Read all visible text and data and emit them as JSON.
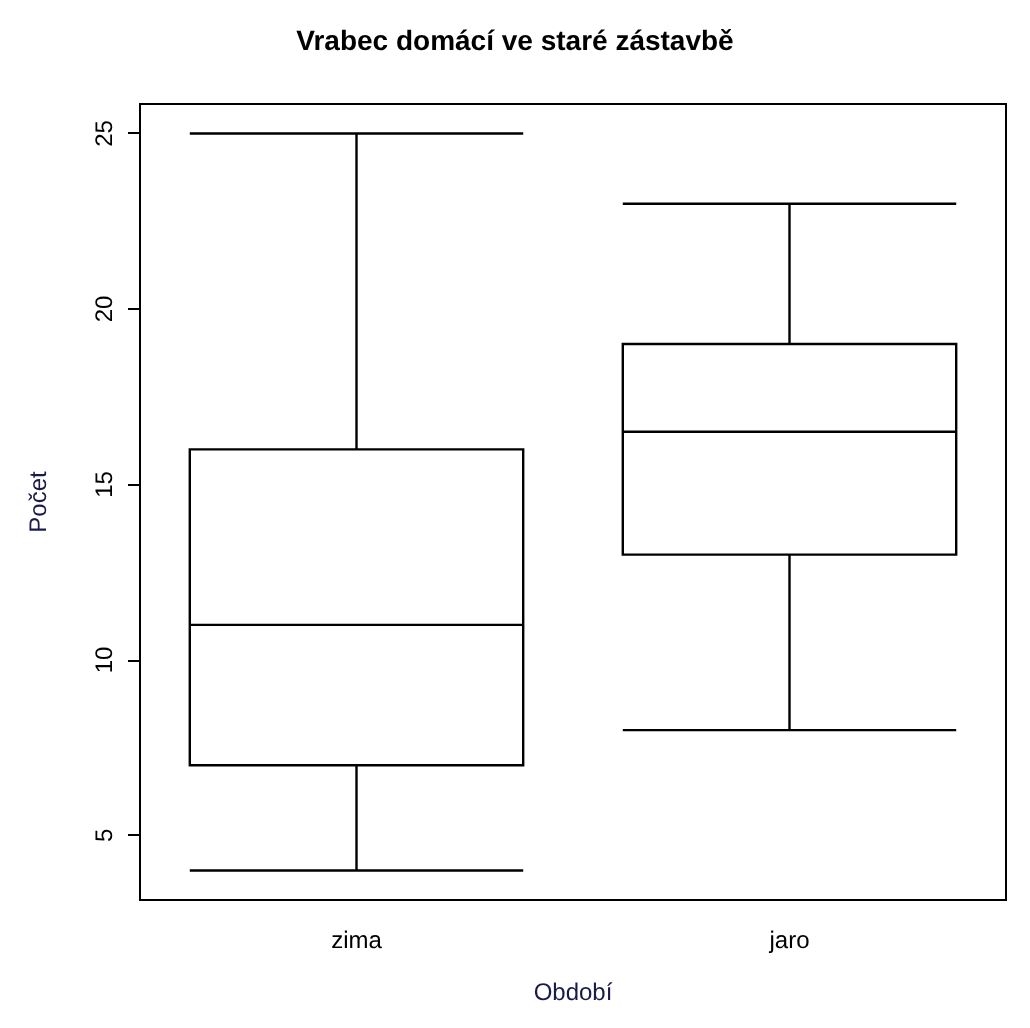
{
  "chart_data": {
    "type": "box",
    "title": "Vrabec domácí ve staré zástavbě",
    "xlabel": "Období",
    "ylabel": "Počet",
    "categories": [
      "zima",
      "jaro"
    ],
    "boxes": [
      {
        "low": 4,
        "q1": 7,
        "median": 11,
        "q3": 16,
        "high": 25
      },
      {
        "low": 8,
        "q1": 13,
        "median": 16.5,
        "q3": 19,
        "high": 23
      }
    ],
    "ylim": [
      3.16,
      25.84
    ],
    "yticks": [
      5,
      10,
      15,
      20,
      25
    ],
    "grid": false
  }
}
